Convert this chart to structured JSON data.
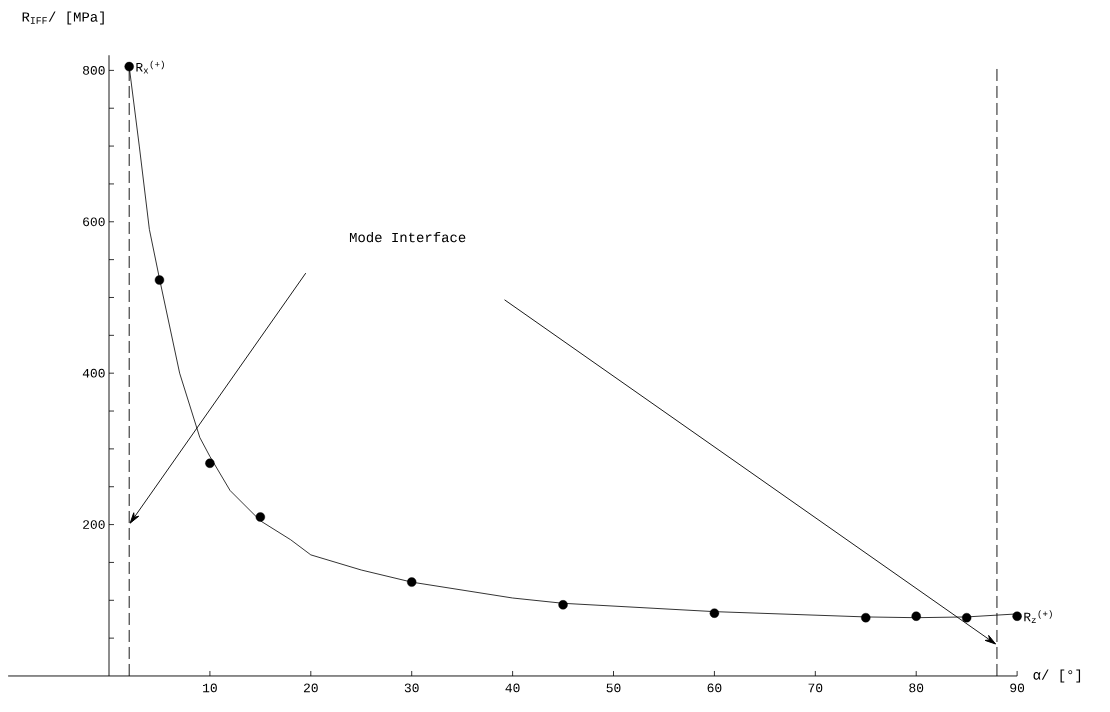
{
  "chart_data": {
    "type": "scatter",
    "xlabel": "α/ [°]",
    "ylabel": "R$_{IFF}$/ [MPa]",
    "xlim": [
      -10,
      90
    ],
    "ylim": [
      0,
      820
    ],
    "xticks": [
      10,
      20,
      30,
      40,
      50,
      60,
      70,
      80,
      90
    ],
    "yticks": [
      {
        "value": 50,
        "label": null
      },
      {
        "value": 100,
        "label": null
      },
      {
        "value": 150,
        "label": null
      },
      200,
      {
        "value": 250,
        "label": null
      },
      {
        "value": 300,
        "label": null
      },
      {
        "value": 350,
        "label": null
      },
      400,
      {
        "value": 450,
        "label": null
      },
      {
        "value": 500,
        "label": null
      },
      {
        "value": 550,
        "label": null
      },
      600,
      {
        "value": 650,
        "label": null
      },
      {
        "value": 700,
        "label": null
      },
      {
        "value": 750,
        "label": null
      },
      800
    ],
    "series": [
      {
        "marker": "circle",
        "color": "#000000",
        "x": [
          2,
          5,
          10,
          15,
          30,
          45,
          60,
          75,
          80,
          85,
          90
        ],
        "values": [
          805,
          523,
          281,
          210,
          124,
          94,
          83,
          77,
          79,
          77,
          79
        ]
      },
      {
        "type": "line",
        "marker": "none",
        "line_style": "solid",
        "color": "#000000",
        "x": [
          2,
          3,
          4,
          5,
          7,
          9,
          10,
          12,
          15,
          18,
          20,
          25,
          30,
          40,
          45,
          60,
          75,
          80,
          85,
          90
        ],
        "values": [
          805,
          700,
          590,
          525,
          400,
          315,
          290,
          245,
          205,
          180,
          160,
          140,
          124,
          103,
          96,
          85,
          78,
          77,
          78,
          82
        ]
      }
    ],
    "ref_lines": [
      {
        "axis": "x",
        "value": 2,
        "line_style": "dashed"
      },
      {
        "axis": "x",
        "value": 88,
        "line_style": "dashed"
      }
    ],
    "annotations": [
      "Mode Interface",
      {
        "text": "R$_{x}$$^{(+)}$",
        "x": 2,
        "y": 805
      },
      {
        "text": "R$_{z}$$^{(+)}$",
        "x": 90,
        "y": 79
      }
    ]
  }
}
